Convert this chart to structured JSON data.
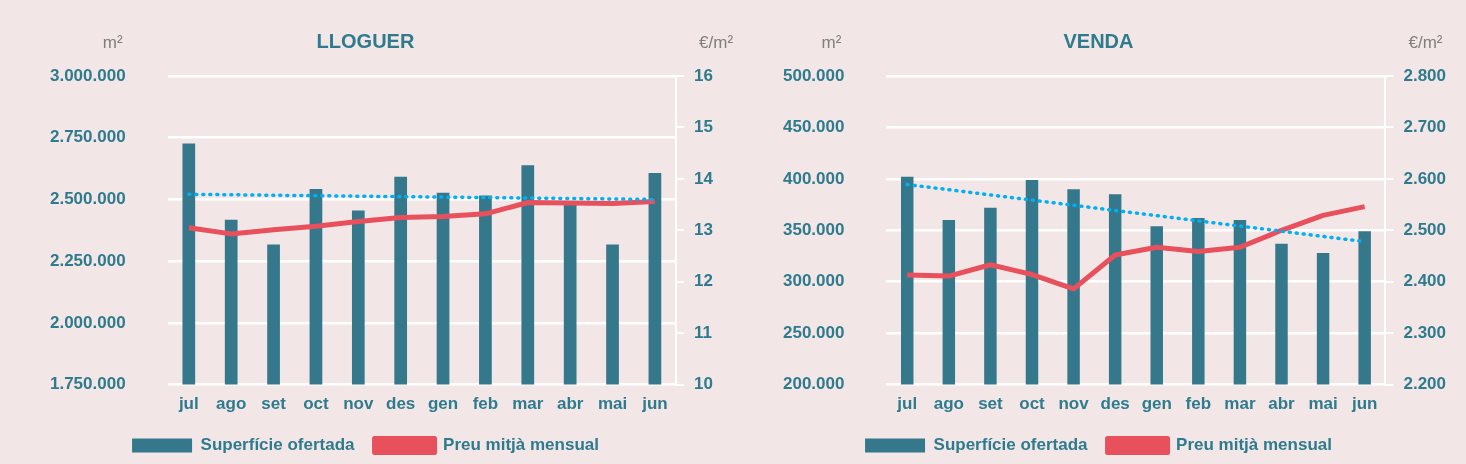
{
  "chart_data": [
    {
      "type": "bar",
      "title": "LLOGUER",
      "ylabel": "m²",
      "y2label": "€/m²",
      "categories": [
        "jul",
        "ago",
        "set",
        "oct",
        "nov",
        "des",
        "gen",
        "feb",
        "mar",
        "abr",
        "mai",
        "jun"
      ],
      "ylim": [
        1750000,
        3000000
      ],
      "yticks": [
        {
          "value": 1750000,
          "label": "1.750.000"
        },
        {
          "value": 2000000,
          "label": "2.000.000"
        },
        {
          "value": 2250000,
          "label": "2.250.000"
        },
        {
          "value": 2500000,
          "label": "2.500.000"
        },
        {
          "value": 2750000,
          "label": "2.750.000"
        },
        {
          "value": 3000000,
          "label": "3.000.000"
        }
      ],
      "y2lim": [
        10,
        16
      ],
      "y2ticks": [
        10,
        11,
        12,
        13,
        14,
        15,
        16
      ],
      "grid": "y",
      "legend": "bottom",
      "marker": "none",
      "series": [
        {
          "name": "Superfície ofertada",
          "color": "#35788c",
          "values": [
            2727000,
            2418000,
            2317000,
            2542000,
            2455000,
            2592000,
            2527000,
            2516000,
            2638000,
            2487000,
            2317000,
            2607000
          ]
        },
        {
          "type": "line",
          "axis": "y2",
          "name": "Preu mitjà mensual",
          "color": "#e8505b",
          "line_style": "solid",
          "values": [
            13.05,
            12.93,
            13.01,
            13.08,
            13.17,
            13.25,
            13.27,
            13.32,
            13.54,
            13.53,
            13.52,
            13.56
          ]
        },
        {
          "type": "line",
          "axis": "y2",
          "color": "#00b0f0",
          "line_style": "dotted",
          "x": [
            "jul",
            "jun"
          ],
          "values": [
            13.7,
            13.6
          ]
        }
      ]
    },
    {
      "type": "bar",
      "title": "VENDA",
      "ylabel": "m²",
      "y2label": "€/m²",
      "categories": [
        "jul",
        "ago",
        "set",
        "oct",
        "nov",
        "des",
        "gen",
        "feb",
        "mar",
        "abr",
        "mai",
        "jun"
      ],
      "ylim": [
        200000,
        500000
      ],
      "yticks": [
        {
          "value": 200000,
          "label": "200.000"
        },
        {
          "value": 250000,
          "label": "250.000"
        },
        {
          "value": 300000,
          "label": "300.000"
        },
        {
          "value": 350000,
          "label": "350.000"
        },
        {
          "value": 400000,
          "label": "400.000"
        },
        {
          "value": 450000,
          "label": "450.000"
        },
        {
          "value": 500000,
          "label": "500.000"
        }
      ],
      "y2lim": [
        2200,
        2800
      ],
      "y2ticks": [
        {
          "value": 2200,
          "label": "2.200"
        },
        {
          "value": 2300,
          "label": "2.300"
        },
        {
          "value": 2400,
          "label": "2.400"
        },
        {
          "value": 2500,
          "label": "2.500"
        },
        {
          "value": 2600,
          "label": "2.600"
        },
        {
          "value": 2700,
          "label": "2.700"
        },
        {
          "value": 2800,
          "label": "2.800"
        }
      ],
      "grid": "y",
      "legend": "bottom",
      "marker": "none",
      "series": [
        {
          "name": "Superfície ofertada",
          "color": "#35788c",
          "values": [
            402000,
            360000,
            372000,
            399000,
            390000,
            385000,
            354000,
            362000,
            360000,
            337000,
            328000,
            349000
          ]
        },
        {
          "type": "line",
          "axis": "y2",
          "name": "Preu mitjà mensual",
          "color": "#e8505b",
          "line_style": "solid",
          "values": [
            2413,
            2411,
            2433,
            2414,
            2386,
            2452,
            2467,
            2459,
            2467,
            2500,
            2529,
            2546
          ]
        },
        {
          "type": "line",
          "axis": "y2",
          "color": "#00b0f0",
          "line_style": "dotted",
          "x": [
            "jul",
            "jun"
          ],
          "values": [
            2589,
            2478
          ]
        }
      ]
    }
  ]
}
